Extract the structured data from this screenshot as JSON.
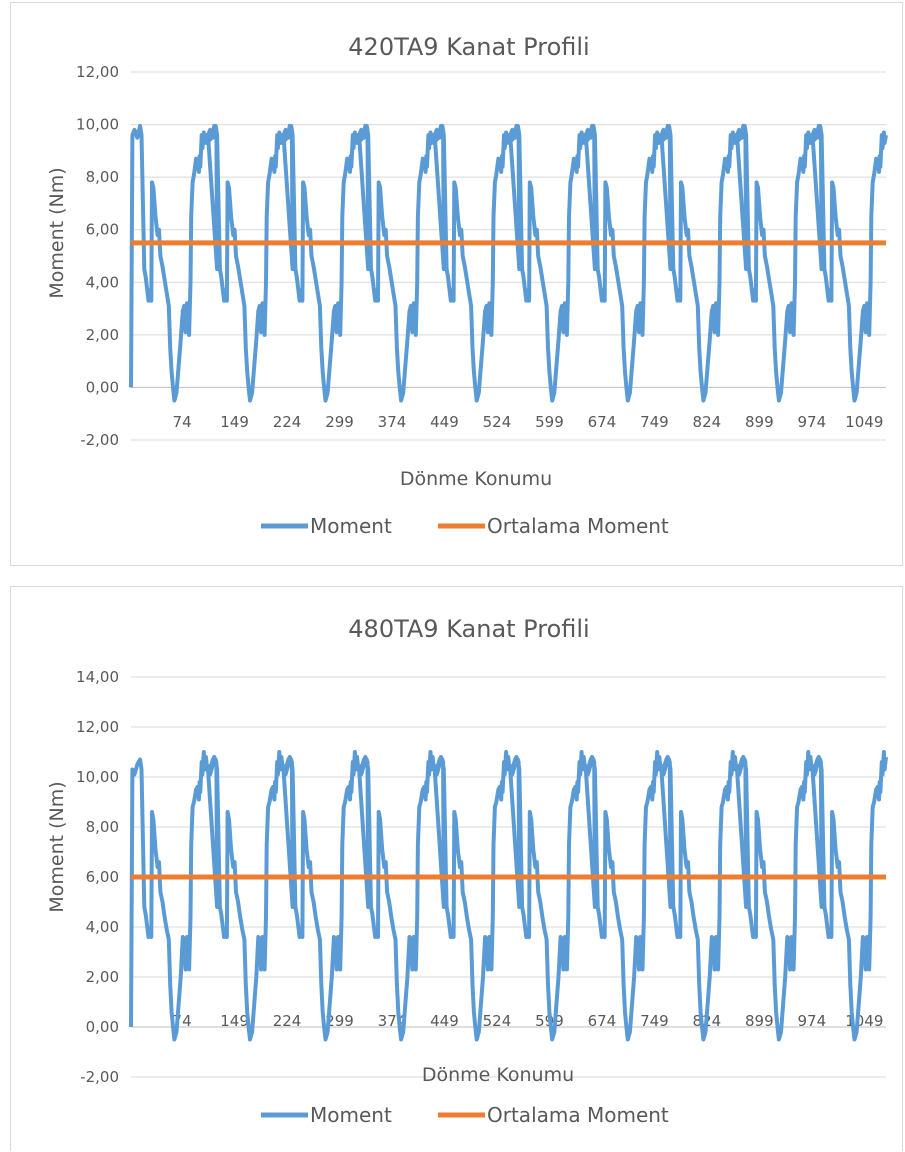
{
  "chart_data": [
    {
      "type": "line",
      "title": "420TA9 Kanat Profili",
      "xlabel": "Dönme Konumu",
      "ylabel": "Moment (Nm)",
      "ylim": [
        -2,
        12
      ],
      "yticks": [
        "-2,00",
        "0,00",
        "2,00",
        "4,00",
        "6,00",
        "8,00",
        "10,00",
        "12,00"
      ],
      "xlim": [
        1,
        1080
      ],
      "xtick_values": [
        74,
        149,
        224,
        299,
        374,
        449,
        524,
        599,
        674,
        749,
        824,
        899,
        974,
        1049
      ],
      "xtick_labels": [
        "74",
        "149",
        "224",
        "299",
        "374",
        "449",
        "524",
        "599",
        "674",
        "749",
        "824",
        "899",
        "974",
        "1049"
      ],
      "grid": "horizontal",
      "legend_position": "bottom",
      "series": [
        {
          "name": "Moment",
          "color": "#5b9bd5",
          "x": [
            1,
            3,
            6,
            10,
            14,
            16,
            20,
            22,
            26,
            28,
            30,
            31,
            33,
            36,
            39,
            41,
            43,
            46,
            49,
            52,
            55,
            57,
            59,
            61,
            63,
            66,
            69,
            72,
            75,
            77,
            79,
            81,
            83,
            84,
            86,
            87,
            89,
            91,
            94,
            96,
            98,
            99,
            100,
            102,
            103,
            105,
            106,
            108,
            110,
            113,
            116,
            118,
            120,
            123,
            124
          ],
          "y": [
            0,
            9.6,
            9.8,
            9.5,
            9.95,
            9.6,
            4.5,
            4.2,
            3.3,
            3.7,
            3.3,
            7.8,
            7.6,
            6.5,
            5.8,
            6.0,
            5.0,
            4.6,
            4.1,
            3.6,
            3.1,
            1.5,
            0.6,
            0.0,
            -0.5,
            -0.2,
            0.8,
            1.8,
            2.9,
            3.1,
            2.1,
            3.2,
            3.0,
            2.0,
            4.0,
            6.5,
            7.8,
            8.1,
            8.7,
            8.6,
            8.2,
            8.8,
            8.4,
            9.6,
            9.1,
            9.7,
            9.3,
            9.6,
            9.3,
            9.4,
            9.5,
            9.7,
            9.95,
            9.8,
            4.5
          ],
          "period": 108,
          "periods": 10
        },
        {
          "name": "Ortalama Moment",
          "color": "#ed7d31",
          "x": [
            1,
            1080
          ],
          "y": [
            5.5,
            5.5
          ]
        }
      ]
    },
    {
      "type": "line",
      "title": "480TA9 Kanat Profili",
      "xlabel": "Dönme Konumu",
      "ylabel": "Moment (Nm)",
      "ylim": [
        -2,
        14
      ],
      "yticks": [
        "-2,00",
        "0,00",
        "2,00",
        "4,00",
        "6,00",
        "8,00",
        "10,00",
        "12,00",
        "14,00"
      ],
      "xlim": [
        1,
        1080
      ],
      "xtick_values": [
        74,
        149,
        224,
        299,
        374,
        449,
        524,
        599,
        674,
        749,
        824,
        899,
        974,
        1049
      ],
      "xtick_labels": [
        "74",
        "149",
        "224",
        "299",
        "374",
        "449",
        "524",
        "599",
        "674",
        "749",
        "824",
        "899",
        "974",
        "1049"
      ],
      "grid": "horizontal",
      "legend_position": "bottom",
      "series": [
        {
          "name": "Moment",
          "color": "#5b9bd5",
          "x": [
            1,
            3,
            6,
            10,
            14,
            16,
            20,
            22,
            26,
            28,
            30,
            31,
            33,
            36,
            39,
            41,
            43,
            46,
            49,
            52,
            55,
            57,
            59,
            61,
            63,
            66,
            69,
            72,
            75,
            77,
            79,
            81,
            83,
            84,
            86,
            87,
            89,
            91,
            94,
            96,
            98,
            99,
            100,
            102,
            103,
            105,
            106,
            108,
            110,
            113,
            116,
            118,
            120,
            123,
            124
          ],
          "y": [
            0,
            10.3,
            10.1,
            10.5,
            10.7,
            10.3,
            4.8,
            4.5,
            3.6,
            3.7,
            3.6,
            8.6,
            8.3,
            7.1,
            6.4,
            6.6,
            5.4,
            5.0,
            4.4,
            3.9,
            3.5,
            1.7,
            0.6,
            0.0,
            -0.5,
            -0.2,
            0.9,
            2.0,
            3.6,
            3.5,
            2.3,
            3.6,
            3.3,
            2.3,
            4.4,
            7.3,
            8.8,
            9.0,
            9.5,
            9.6,
            9.1,
            9.8,
            9.4,
            10.6,
            10.1,
            11.0,
            10.3,
            10.8,
            10.3,
            10.4,
            10.5,
            10.7,
            10.8,
            10.6,
            4.8
          ],
          "period": 108,
          "periods": 10
        },
        {
          "name": "Ortalama Moment",
          "color": "#ed7d31",
          "x": [
            1,
            1080
          ],
          "y": [
            6.0,
            6.0
          ]
        }
      ]
    }
  ]
}
